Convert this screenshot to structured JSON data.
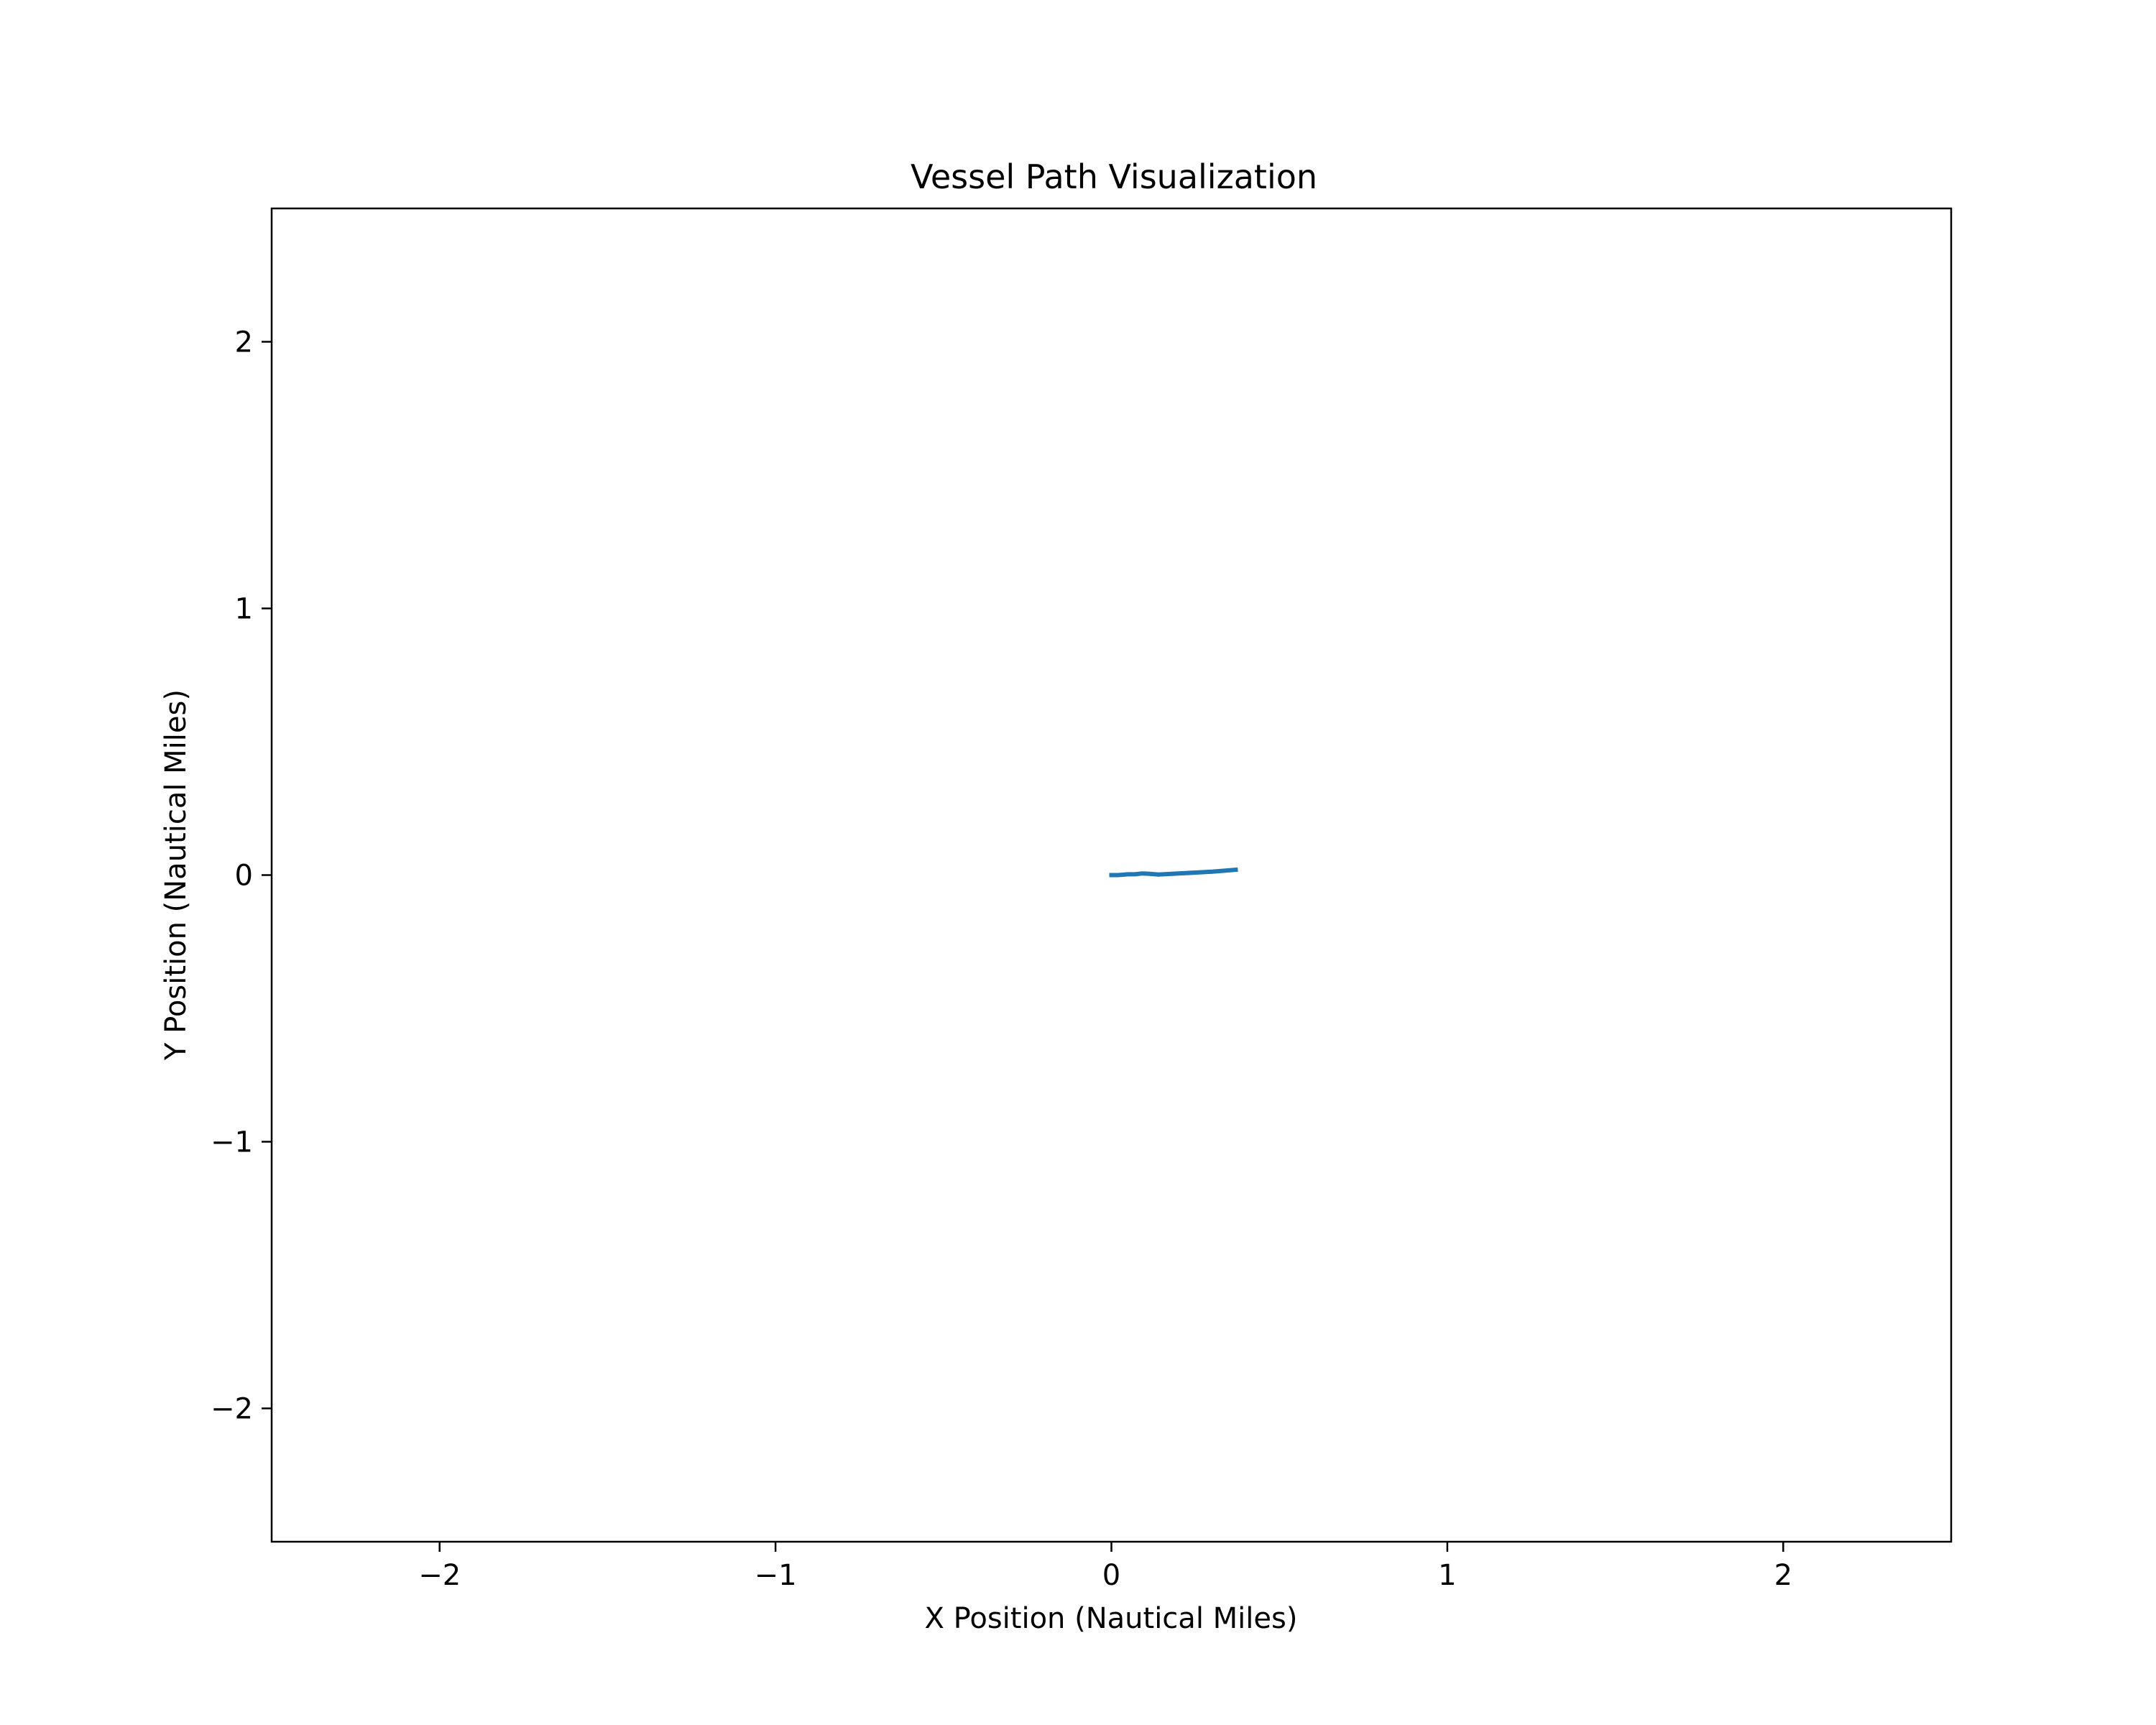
{
  "chart_data": {
    "type": "line",
    "title": "Vessel Path Visualization",
    "xlabel": "X Position (Nautical Miles)",
    "ylabel": "Y Position (Nautical Miles)",
    "xlim": [
      -2.5,
      2.5
    ],
    "ylim": [
      -2.5,
      2.5
    ],
    "grid": false,
    "x_ticks": [
      -2,
      -1,
      0,
      1,
      2
    ],
    "y_ticks": [
      -2,
      -1,
      0,
      1,
      2
    ],
    "x_tick_labels": [
      "−2",
      "−1",
      "0",
      "1",
      "2"
    ],
    "y_tick_labels": [
      "−2",
      "−1",
      "0",
      "1",
      "2"
    ],
    "series": [
      {
        "color": "#1f77b4",
        "x": [
          0.0,
          0.02,
          0.05,
          0.07,
          0.09,
          0.11,
          0.14,
          0.2,
          0.3,
          0.37
        ],
        "y": [
          0.0,
          0.0,
          0.003,
          0.003,
          0.006,
          0.005,
          0.002,
          0.006,
          0.013,
          0.02
        ]
      }
    ]
  }
}
